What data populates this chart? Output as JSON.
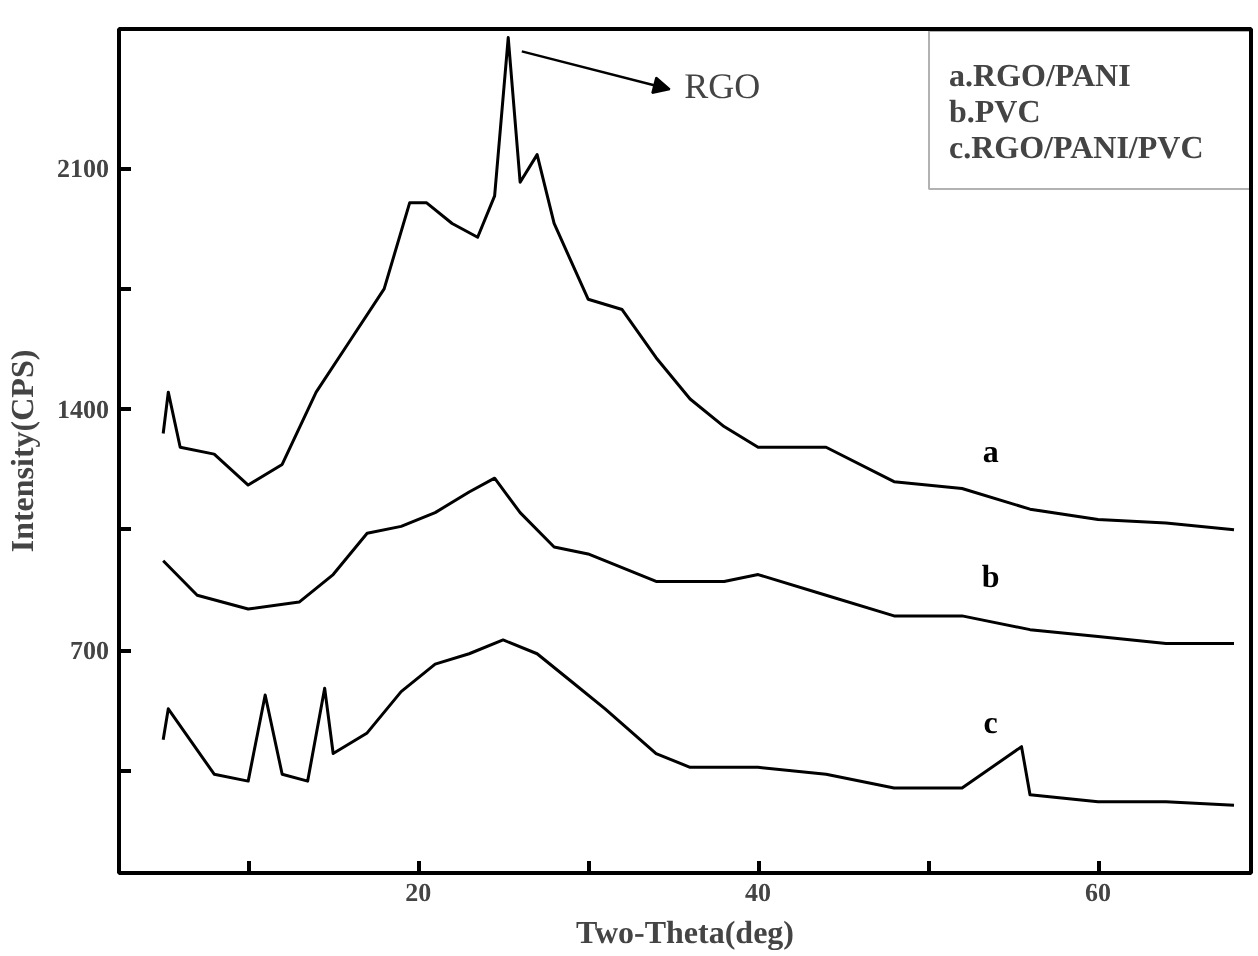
{
  "chart_data": {
    "type": "line",
    "xlabel": "Two-Theta(deg)",
    "ylabel": "Intensity(CPS)",
    "xlim": [
      2.4,
      69
    ],
    "ylim": [
      53,
      2505
    ],
    "xticks": [
      {
        "value": 10,
        "label": null
      },
      20,
      {
        "value": 30,
        "label": null
      },
      40,
      {
        "value": 50,
        "label": null
      },
      60
    ],
    "yticks": [
      {
        "value": 350,
        "label": null
      },
      700,
      {
        "value": 1050,
        "label": null
      },
      1400,
      {
        "value": 1750,
        "label": null
      },
      2100
    ],
    "grid": false,
    "marker": "none",
    "line_style": "solid",
    "series": [
      {
        "name": "a",
        "color": "#000000",
        "x": [
          5,
          5.3,
          6,
          8,
          10,
          12,
          14,
          16,
          18,
          19.5,
          20.5,
          22,
          23.5,
          24.5,
          25.3,
          26,
          27,
          28,
          30,
          32,
          34,
          36,
          38,
          40,
          44,
          48,
          52,
          56,
          60,
          64,
          68
        ],
        "values": [
          1330,
          1450,
          1290,
          1270,
          1180,
          1240,
          1450,
          1600,
          1750,
          2000,
          2000,
          1940,
          1900,
          2020,
          2480,
          2060,
          2140,
          1940,
          1720,
          1690,
          1550,
          1430,
          1350,
          1290,
          1290,
          1190,
          1170,
          1110,
          1080,
          1070,
          1050
        ]
      },
      {
        "name": "b",
        "color": "#000000",
        "x": [
          5,
          7,
          10,
          13,
          15,
          17,
          19,
          21,
          23,
          24.5,
          26,
          28,
          30,
          34,
          38,
          40,
          44,
          48,
          52,
          56,
          60,
          64,
          68
        ],
        "values": [
          960,
          860,
          820,
          840,
          920,
          1040,
          1060,
          1100,
          1160,
          1200,
          1100,
          1000,
          980,
          900,
          900,
          920,
          860,
          800,
          800,
          760,
          740,
          720,
          720
        ]
      },
      {
        "name": "c",
        "color": "#000000",
        "x": [
          5,
          5.3,
          8,
          10,
          11,
          12,
          13.5,
          14.5,
          15,
          17,
          19,
          21,
          23,
          25,
          27,
          29,
          31,
          34,
          36,
          40,
          44,
          48,
          52,
          55.5,
          56,
          60,
          64,
          68
        ],
        "values": [
          440,
          530,
          340,
          320,
          570,
          340,
          320,
          590,
          400,
          460,
          580,
          660,
          690,
          730,
          690,
          610,
          530,
          400,
          360,
          360,
          340,
          300,
          300,
          420,
          280,
          260,
          260,
          250
        ]
      }
    ],
    "annotations": [
      "RGO",
      "a.RGO/PANI",
      "b.PVC",
      "c.RGO/PANI/PVC"
    ]
  }
}
